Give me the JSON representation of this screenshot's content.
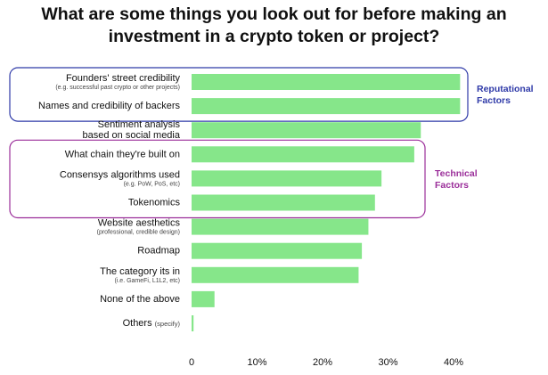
{
  "title_lines": [
    "What are some things you look out for before making an",
    "investment in a crypto token or project?"
  ],
  "colors": {
    "bar": "#86e68a",
    "reputational": "#2f3aa8",
    "technical": "#9b2f9a"
  },
  "groups": [
    {
      "label": [
        "Reputational",
        "Factors"
      ],
      "color": "#2f3aa8",
      "items": [
        0,
        1
      ]
    },
    {
      "label": [
        "Technical",
        "Factors"
      ],
      "color": "#9b2f9a",
      "items": [
        3,
        4,
        5
      ]
    }
  ],
  "chart_data": {
    "type": "bar",
    "orientation": "horizontal",
    "title": "What are some things you look out for before making an investment in a crypto token or project?",
    "categories": [
      "Founders' street credibility",
      "Names and credibility of backers",
      "Sentiment analysis based on social media",
      "What chain they're built on",
      "Consensys algorithms used",
      "Tokenomics",
      "Website aesthetics",
      "Roadmap",
      "The category its in",
      "None of the above",
      "Others"
    ],
    "category_lines": [
      [
        "Founders' street credibility"
      ],
      [
        "Names and credibility of backers"
      ],
      [
        "Sentiment analysis",
        "based on social media"
      ],
      [
        "What chain they're built on"
      ],
      [
        "Consensys algorithms used"
      ],
      [
        "Tokenomics"
      ],
      [
        "Website aesthetics"
      ],
      [
        "Roadmap"
      ],
      [
        "The category its in"
      ],
      [
        "None of the above"
      ],
      [
        "Others"
      ]
    ],
    "sublabels": [
      "(e.g. successful past crypto or other projects)",
      "",
      "",
      "",
      "(e.g. PoW, PoS, etc)",
      "",
      "(professional, credible design)",
      "",
      "(i.e. GameFi, L1L2, etc)",
      "",
      ""
    ],
    "inline_notes": [
      "",
      "",
      "",
      "",
      "",
      "",
      "",
      "",
      "",
      "",
      "(specify)"
    ],
    "values": [
      41,
      41,
      35,
      34,
      29,
      28,
      27,
      26,
      25.5,
      3.5,
      0.3
    ],
    "xticks": [
      "0",
      "10%",
      "20%",
      "30%",
      "40%"
    ],
    "xtick_values": [
      0,
      10,
      20,
      30,
      40
    ],
    "xlim": [
      0,
      42
    ],
    "grid": false
  }
}
